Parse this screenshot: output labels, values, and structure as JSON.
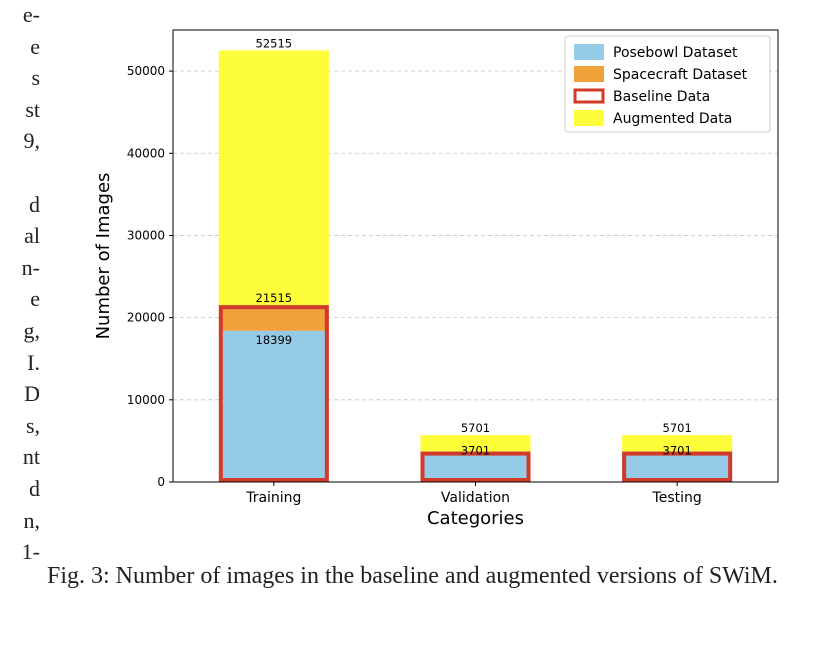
{
  "left_column_fragments": [
    "e-",
    "e",
    "s",
    "st",
    "9,",
    "",
    "d",
    "al",
    "n-",
    "e",
    "g,",
    "I.",
    "D",
    "s,",
    "nt",
    "d",
    "n,",
    "1-"
  ],
  "caption": "Fig. 3: Number of images in the baseline and augmented versions of SWiM.",
  "chart_data": {
    "type": "bar",
    "xlabel": "Categories",
    "ylabel": "Number of Images",
    "ylim": [
      0,
      55000
    ],
    "yticks": [
      0,
      10000,
      20000,
      30000,
      40000,
      50000
    ],
    "categories": [
      "Training",
      "Validation",
      "Testing"
    ],
    "series": [
      {
        "name": "Posebowl Dataset",
        "values": [
          18399,
          3701,
          3701
        ],
        "color": "#95cbe6"
      },
      {
        "name": "Spacecraft Dataset",
        "values": [
          3116,
          0,
          0
        ],
        "color": "#f0a13a"
      },
      {
        "name": "Baseline Data",
        "values": [
          21515,
          3701,
          3701
        ],
        "color": "#d23a2a"
      },
      {
        "name": "Augmented Data",
        "values": [
          31000,
          2000,
          2000
        ],
        "color": "#fdfd3a"
      }
    ],
    "totals": [
      52515,
      5701,
      5701
    ],
    "bar_labels": [
      {
        "category": "Training",
        "labels": [
          "52515",
          "21515",
          "18399"
        ]
      },
      {
        "category": "Validation",
        "labels": [
          "5701",
          "3701"
        ]
      },
      {
        "category": "Testing",
        "labels": [
          "5701",
          "3701"
        ]
      }
    ],
    "grid": "y-dashed",
    "legend_position": "top-right"
  }
}
